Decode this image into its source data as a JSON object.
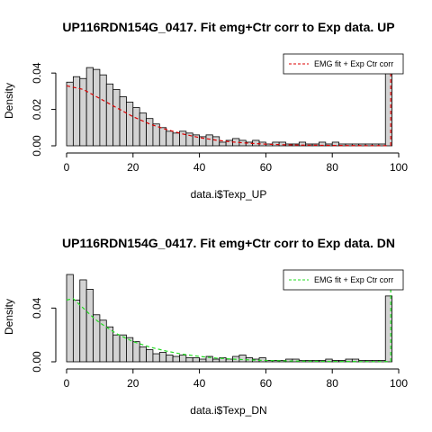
{
  "chart_data": [
    {
      "type": "bar",
      "title": "UP116RDN154G_0417. Fit emg+Ctr corr to Exp data. UP",
      "xlabel": "data.i$Texp_UP",
      "ylabel": "Density",
      "xlim": [
        0,
        100
      ],
      "ylim": [
        0,
        0.048
      ],
      "xticks": [
        0,
        20,
        40,
        60,
        80,
        100
      ],
      "xtick_labels": [
        "0",
        "20",
        "40",
        "60",
        "80",
        "100"
      ],
      "yticks": [
        0.0,
        0.02,
        0.04
      ],
      "ytick_labels": [
        "0.00",
        "0.02",
        "0.04"
      ],
      "bin_width": 2,
      "bin_start": 0,
      "values": [
        0.035,
        0.038,
        0.037,
        0.043,
        0.042,
        0.039,
        0.034,
        0.031,
        0.027,
        0.024,
        0.021,
        0.018,
        0.015,
        0.012,
        0.01,
        0.008,
        0.007,
        0.008,
        0.007,
        0.006,
        0.005,
        0.006,
        0.005,
        0.002,
        0.003,
        0.004,
        0.003,
        0.002,
        0.003,
        0.002,
        0.001,
        0.002,
        0.002,
        0.001,
        0.001,
        0.002,
        0.001,
        0.001,
        0.002,
        0.001,
        0.002,
        0.001,
        0.001,
        0.001,
        0.001,
        0.001,
        0.001,
        0.001,
        0.044
      ],
      "legend": {
        "label": "EMG fit + Exp Ctr corr",
        "color": "#dd0000",
        "position": "top-right"
      },
      "fit_curve": {
        "color": "#dd0000",
        "x": [
          0,
          5,
          10,
          15,
          20,
          25,
          30,
          35,
          40,
          45,
          50,
          55,
          60,
          65,
          70,
          75,
          80,
          85,
          90,
          95,
          97
        ],
        "y": [
          0.033,
          0.031,
          0.026,
          0.021,
          0.016,
          0.012,
          0.009,
          0.0065,
          0.0045,
          0.0031,
          0.0021,
          0.0014,
          0.0009,
          0.0006,
          0.0004,
          0.0003,
          0.0002,
          0.00015,
          0.0001,
          0.0001,
          0.0001
        ],
        "spike_x": 97.6,
        "spike_top": 0.048
      }
    },
    {
      "type": "bar",
      "title": "UP116RDN154G_0417. Fit emg+Ctr corr to Exp data. DN",
      "xlabel": "data.i$Texp_DN",
      "ylabel": "Density",
      "xlim": [
        0,
        100
      ],
      "ylim": [
        0,
        0.065
      ],
      "xticks": [
        0,
        20,
        40,
        60,
        80,
        100
      ],
      "xtick_labels": [
        "0",
        "20",
        "40",
        "60",
        "80",
        "100"
      ],
      "yticks": [
        0.0,
        0.04
      ],
      "ytick_labels": [
        "0.00",
        "0.04"
      ],
      "bin_width": 2,
      "bin_start": 0,
      "values": [
        0.065,
        0.046,
        0.061,
        0.054,
        0.035,
        0.031,
        0.026,
        0.02,
        0.02,
        0.018,
        0.015,
        0.011,
        0.009,
        0.006,
        0.007,
        0.005,
        0.004,
        0.005,
        0.003,
        0.003,
        0.002,
        0.004,
        0.002,
        0.003,
        0.002,
        0.004,
        0.005,
        0.003,
        0.002,
        0.003,
        0.001,
        0.001,
        0.001,
        0.002,
        0.002,
        0.001,
        0.001,
        0.001,
        0.001,
        0.002,
        0.001,
        0.001,
        0.002,
        0.002,
        0.001,
        0.001,
        0.001,
        0.001,
        0.049
      ],
      "legend": {
        "label": "EMG fit + Exp Ctr corr",
        "color": "#22dd22",
        "position": "top-right"
      },
      "fit_curve": {
        "color": "#22dd22",
        "x": [
          0,
          2,
          5,
          8,
          10,
          15,
          20,
          25,
          30,
          35,
          40,
          45,
          50,
          55,
          60,
          70,
          80,
          90,
          97
        ],
        "y": [
          0.046,
          0.047,
          0.04,
          0.033,
          0.029,
          0.021,
          0.015,
          0.011,
          0.008,
          0.0056,
          0.004,
          0.0028,
          0.002,
          0.0014,
          0.001,
          0.0005,
          0.0003,
          0.0002,
          0.0002
        ],
        "spike_x": 97.6,
        "spike_top": 0.065
      }
    }
  ]
}
